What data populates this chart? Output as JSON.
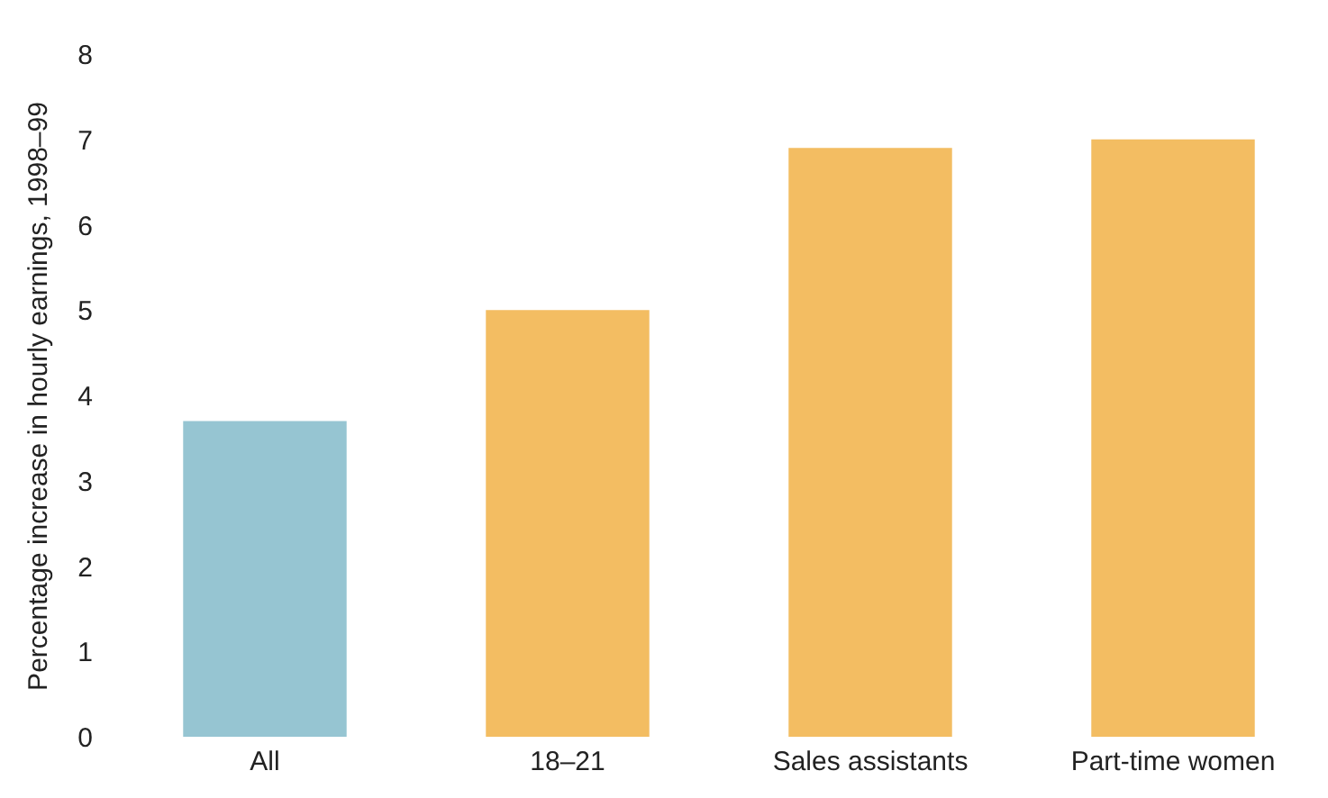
{
  "chart_data": {
    "type": "bar",
    "ylabel": "Percentage increase in hourly earnings, 1998–99",
    "categories": [
      "All",
      "18–21",
      "Sales assistants",
      "Part-time women"
    ],
    "values": [
      3.7,
      5.0,
      6.9,
      7.0
    ],
    "colors": [
      "#96c5d2",
      "#f3bd62",
      "#f3bd62",
      "#f3bd62"
    ],
    "ylim": [
      0,
      8
    ],
    "yticks": [
      0,
      1,
      2,
      3,
      4,
      5,
      6,
      7,
      8
    ],
    "grid": false,
    "legend": false
  }
}
